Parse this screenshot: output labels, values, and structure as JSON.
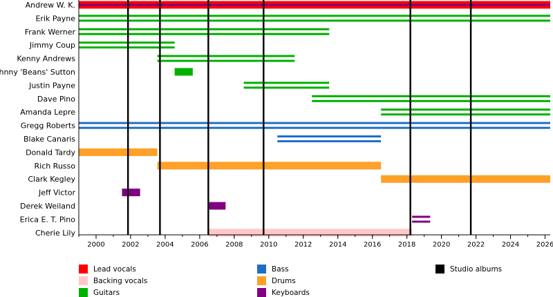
{
  "chart_data": {
    "type": "timeline",
    "xlim": [
      1999,
      2026.3
    ],
    "xticks": [
      "2000",
      "2002",
      "2004",
      "2006",
      "2008",
      "2010",
      "2012",
      "2014",
      "2016",
      "2018",
      "2020",
      "2022",
      "2024",
      "2026"
    ],
    "members": [
      {
        "name": "Andrew W. K.",
        "roles": [
          {
            "role": "lead_vocals",
            "start": 1999.0,
            "end": 2026.3
          },
          {
            "role": "keyboards",
            "start": 1999.0,
            "end": 2026.3
          }
        ]
      },
      {
        "name": "Erik Payne",
        "roles": [
          {
            "role": "guitars",
            "start": 1999.0,
            "end": 2026.3
          }
        ]
      },
      {
        "name": "Frank Werner",
        "roles": [
          {
            "role": "guitars",
            "start": 1999.0,
            "end": 2013.5
          }
        ]
      },
      {
        "name": "Jimmy Coup",
        "roles": [
          {
            "role": "guitars",
            "start": 1999.0,
            "end": 2004.55
          }
        ]
      },
      {
        "name": "Kenny Andrews",
        "roles": [
          {
            "role": "guitars",
            "start": 2003.55,
            "end": 2011.5
          }
        ]
      },
      {
        "name": "Johnny 'Beans' Sutton",
        "roles": [
          {
            "role": "guitars",
            "start": 2004.55,
            "end": 2005.6
          }
        ]
      },
      {
        "name": "Justin Payne",
        "roles": [
          {
            "role": "guitars",
            "start": 2008.55,
            "end": 2013.5
          }
        ]
      },
      {
        "name": "Dave Pino",
        "roles": [
          {
            "role": "guitars",
            "start": 2012.5,
            "end": 2026.3
          }
        ]
      },
      {
        "name": "Amanda Lepre",
        "roles": [
          {
            "role": "guitars",
            "start": 2016.5,
            "end": 2026.3
          }
        ]
      },
      {
        "name": "Gregg Roberts",
        "roles": [
          {
            "role": "bass",
            "start": 1999.0,
            "end": 2026.3
          }
        ]
      },
      {
        "name": "Blake Canaris",
        "roles": [
          {
            "role": "bass",
            "start": 2010.5,
            "end": 2016.5
          }
        ]
      },
      {
        "name": "Donald Tardy",
        "roles": [
          {
            "role": "drums",
            "start": 1999.0,
            "end": 2003.55
          }
        ]
      },
      {
        "name": "Rich Russo",
        "roles": [
          {
            "role": "drums",
            "start": 2003.55,
            "end": 2016.5
          }
        ]
      },
      {
        "name": "Clark Kegley",
        "roles": [
          {
            "role": "drums",
            "start": 2016.5,
            "end": 2026.3
          }
        ]
      },
      {
        "name": "Jeff Victor",
        "roles": [
          {
            "role": "keyboards",
            "start": 2001.5,
            "end": 2002.55
          }
        ]
      },
      {
        "name": "Derek Weiland",
        "roles": [
          {
            "role": "keyboards",
            "start": 2006.55,
            "end": 2007.5
          }
        ]
      },
      {
        "name": "Erica E. T. Pino",
        "roles": [
          {
            "role": "keyboards",
            "start": 2018.3,
            "end": 2019.35
          }
        ]
      },
      {
        "name": "Cherie Lily",
        "roles": [
          {
            "role": "backing_vocals",
            "start": 2006.5,
            "end": 2018.3
          }
        ]
      }
    ],
    "studio_albums": [
      2001.85,
      2003.7,
      2006.5,
      2009.7,
      2018.2,
      2021.7
    ],
    "legend": [
      {
        "key": "lead_vocals",
        "label": "Lead vocals",
        "color": "#ff0000"
      },
      {
        "key": "backing_vocals",
        "label": "Backing vocals",
        "color": "#ffc8c8"
      },
      {
        "key": "guitars",
        "label": "Guitars",
        "color": "#00b000"
      },
      {
        "key": "bass",
        "label": "Bass",
        "color": "#1e6ec8"
      },
      {
        "key": "drums",
        "label": "Drums",
        "color": "#ffa028"
      },
      {
        "key": "keyboards",
        "label": "Keyboards",
        "color": "#800080"
      },
      {
        "key": "studio_albums",
        "label": "Studio albums",
        "color": "#000000"
      }
    ]
  }
}
